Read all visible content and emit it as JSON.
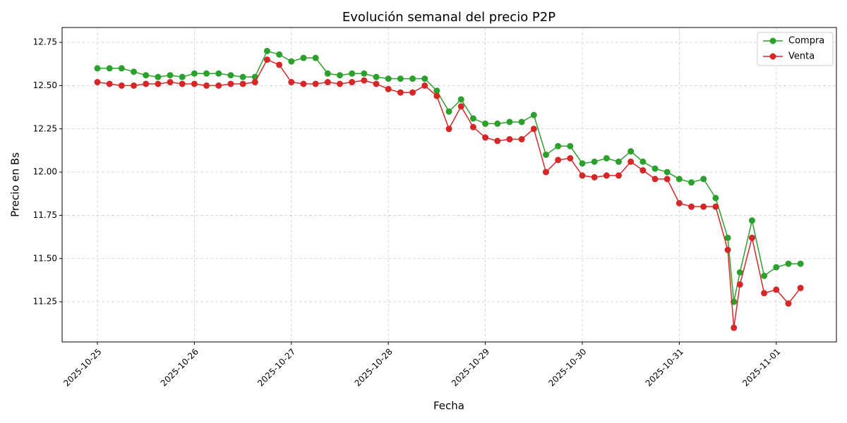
{
  "chart_data": {
    "type": "line",
    "title": "Evolución semanal del precio P2P",
    "x_label": "Fecha",
    "y_label": "Precio en Bs",
    "x": [
      "2025-10-25T00:00",
      "2025-10-25T03:00",
      "2025-10-25T06:00",
      "2025-10-25T09:00",
      "2025-10-25T12:00",
      "2025-10-25T15:00",
      "2025-10-25T18:00",
      "2025-10-25T21:00",
      "2025-10-26T00:00",
      "2025-10-26T03:00",
      "2025-10-26T06:00",
      "2025-10-26T09:00",
      "2025-10-26T12:00",
      "2025-10-26T15:00",
      "2025-10-26T18:00",
      "2025-10-26T21:00",
      "2025-10-27T00:00",
      "2025-10-27T03:00",
      "2025-10-27T06:00",
      "2025-10-27T09:00",
      "2025-10-27T12:00",
      "2025-10-27T15:00",
      "2025-10-27T18:00",
      "2025-10-27T21:00",
      "2025-10-28T00:00",
      "2025-10-28T03:00",
      "2025-10-28T06:00",
      "2025-10-28T09:00",
      "2025-10-28T12:00",
      "2025-10-28T15:00",
      "2025-10-28T18:00",
      "2025-10-28T21:00",
      "2025-10-29T00:00",
      "2025-10-29T03:00",
      "2025-10-29T06:00",
      "2025-10-29T09:00",
      "2025-10-29T12:00",
      "2025-10-29T15:00",
      "2025-10-29T18:00",
      "2025-10-29T21:00",
      "2025-10-30T00:00",
      "2025-10-30T03:00",
      "2025-10-30T06:00",
      "2025-10-30T09:00",
      "2025-10-30T12:00",
      "2025-10-30T15:00",
      "2025-10-30T18:00",
      "2025-10-30T21:00",
      "2025-10-31T00:00",
      "2025-10-31T03:00",
      "2025-10-31T06:00",
      "2025-10-31T09:00",
      "2025-10-31T12:00",
      "2025-10-31T13:30",
      "2025-10-31T15:00",
      "2025-10-31T18:00",
      "2025-10-31T21:00",
      "2025-11-01T00:00",
      "2025-11-01T03:00",
      "2025-11-01T06:00"
    ],
    "series": [
      {
        "name": "Compra",
        "color": "#2ca02c",
        "values": [
          12.6,
          12.6,
          12.6,
          12.58,
          12.56,
          12.55,
          12.56,
          12.55,
          12.57,
          12.57,
          12.57,
          12.56,
          12.55,
          12.55,
          12.7,
          12.68,
          12.64,
          12.66,
          12.66,
          12.57,
          12.56,
          12.57,
          12.57,
          12.55,
          12.54,
          12.54,
          12.54,
          12.54,
          12.47,
          12.35,
          12.42,
          12.31,
          12.28,
          12.28,
          12.29,
          12.29,
          12.33,
          12.1,
          12.15,
          12.15,
          12.05,
          12.06,
          12.08,
          12.06,
          12.12,
          12.06,
          12.02,
          12.0,
          11.96,
          11.94,
          11.96,
          11.85,
          11.62,
          11.25,
          11.42,
          11.72,
          11.4,
          11.45,
          11.47,
          11.47
        ]
      },
      {
        "name": "Venta",
        "color": "#d62728",
        "values": [
          12.52,
          12.51,
          12.5,
          12.5,
          12.51,
          12.51,
          12.52,
          12.51,
          12.51,
          12.5,
          12.5,
          12.51,
          12.51,
          12.52,
          12.65,
          12.62,
          12.52,
          12.51,
          12.51,
          12.52,
          12.51,
          12.52,
          12.53,
          12.51,
          12.48,
          12.46,
          12.46,
          12.5,
          12.44,
          12.25,
          12.38,
          12.26,
          12.2,
          12.18,
          12.19,
          12.19,
          12.25,
          12.0,
          12.07,
          12.08,
          11.98,
          11.97,
          11.98,
          11.98,
          12.06,
          12.01,
          11.96,
          11.96,
          11.82,
          11.8,
          11.8,
          11.8,
          11.55,
          11.1,
          11.35,
          11.62,
          11.3,
          11.32,
          11.24,
          11.33
        ]
      }
    ],
    "xlim": [
      "2025-10-24T15:16",
      "2025-11-01T14:53"
    ],
    "xticks": [
      "2025-10-25",
      "2025-10-26",
      "2025-10-27",
      "2025-10-28",
      "2025-10-29",
      "2025-10-30",
      "2025-10-31",
      "2025-11-01"
    ],
    "ylim": [
      11.018,
      12.836
    ],
    "yticks": [
      11.25,
      {
        "value": 11.5,
        "label": "11.50"
      },
      11.75,
      {
        "value": 12,
        "label": "12.00"
      },
      12.25,
      {
        "value": 12.5,
        "label": "12.50"
      },
      12.75
    ],
    "grid": true,
    "legend": "upper right"
  }
}
